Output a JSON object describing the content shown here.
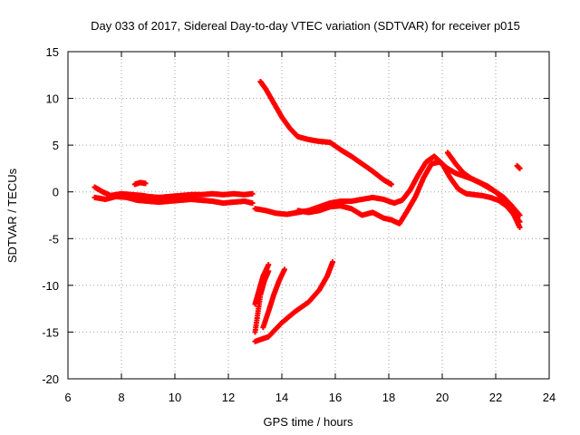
{
  "chart_data": {
    "type": "scatter",
    "title": "Day 033 of 2017, Sidereal Day-to-day VTEC variation (SDTVAR) for receiver p015",
    "xlabel": "GPS time / hours",
    "ylabel": "SDTVAR / TECUs",
    "xlim": [
      6,
      24
    ],
    "ylim": [
      -20,
      15
    ],
    "xticks": [
      6,
      8,
      10,
      12,
      14,
      16,
      18,
      20,
      22,
      24
    ],
    "yticks": [
      -20,
      -15,
      -10,
      -5,
      0,
      5,
      10,
      15
    ],
    "grid": true,
    "marker_color": "#ff0000",
    "series": [
      {
        "name": "segment-1",
        "x": [
          7.0,
          7.3,
          7.6,
          8.0,
          8.4,
          8.8,
          9.0,
          9.4,
          9.8,
          10.2,
          10.6,
          11.0,
          11.4,
          11.8,
          12.2,
          12.6,
          12.9
        ],
        "y": [
          0.5,
          0.0,
          -0.4,
          -0.2,
          -0.3,
          -0.4,
          -0.5,
          -0.6,
          -0.5,
          -0.4,
          -0.3,
          -0.3,
          -0.2,
          -0.3,
          -0.2,
          -0.3,
          -0.2
        ]
      },
      {
        "name": "segment-2",
        "x": [
          7.0,
          7.4,
          7.8,
          8.2,
          8.6,
          9.0,
          9.4,
          9.8,
          10.2,
          10.6,
          11.0,
          11.4,
          11.8,
          12.2,
          12.6,
          12.9
        ],
        "y": [
          -0.6,
          -0.8,
          -0.5,
          -0.6,
          -0.9,
          -1.0,
          -1.1,
          -1.0,
          -0.9,
          -0.8,
          -0.9,
          -1.0,
          -1.2,
          -1.1,
          -1.0,
          -1.2
        ]
      },
      {
        "name": "segment-3",
        "x": [
          8.5,
          8.7,
          8.9
        ],
        "y": [
          0.8,
          1.0,
          0.9
        ]
      },
      {
        "name": "segment-4",
        "x": [
          13.0,
          13.4,
          13.8,
          14.2,
          14.6,
          15.0,
          15.4,
          15.8,
          16.2,
          16.6,
          17.0,
          17.4,
          17.8,
          18.2,
          18.5,
          18.8,
          19.1,
          19.4,
          19.7,
          20.0,
          20.3,
          20.6,
          20.9,
          21.2,
          21.5,
          21.8,
          22.1,
          22.4,
          22.7,
          22.9
        ],
        "y": [
          -1.8,
          -2.0,
          -2.3,
          -2.4,
          -2.2,
          -2.0,
          -1.6,
          -1.2,
          -1.0,
          -1.0,
          -0.8,
          -0.6,
          -0.8,
          -1.2,
          -0.9,
          0.2,
          1.8,
          3.2,
          3.8,
          3.0,
          1.5,
          0.3,
          -0.2,
          -0.3,
          -0.4,
          -0.6,
          -0.9,
          -1.5,
          -2.5,
          -3.2
        ]
      },
      {
        "name": "segment-5",
        "x": [
          14.6,
          15.0,
          15.4,
          15.8,
          16.2,
          16.6,
          17.0,
          17.4,
          17.8,
          18.1,
          18.4,
          18.7,
          19.0,
          19.3,
          19.6,
          19.9,
          20.2,
          20.5,
          20.8,
          21.1,
          21.4,
          21.7,
          22.0,
          22.3,
          22.6,
          22.9
        ],
        "y": [
          -2.0,
          -2.2,
          -2.0,
          -1.6,
          -1.5,
          -1.8,
          -2.5,
          -2.2,
          -2.8,
          -3.0,
          -3.4,
          -2.0,
          -0.5,
          1.5,
          3.0,
          3.2,
          2.5,
          2.0,
          1.7,
          1.4,
          1.0,
          0.6,
          0.0,
          -0.8,
          -2.0,
          -3.8
        ]
      },
      {
        "name": "segment-6",
        "x": [
          13.2,
          13.4,
          13.7,
          14.0,
          14.3,
          14.6,
          15.0,
          15.4,
          15.8,
          16.2,
          16.6,
          17.0,
          17.4,
          17.8,
          18.1
        ],
        "y": [
          11.8,
          11.0,
          9.5,
          8.0,
          6.8,
          5.9,
          5.6,
          5.4,
          5.3,
          4.5,
          3.8,
          3.0,
          2.2,
          1.3,
          0.8
        ]
      },
      {
        "name": "segment-7",
        "x": [
          20.2,
          20.5,
          20.8,
          21.1,
          21.4,
          21.7,
          22.0,
          22.3,
          22.6,
          22.9
        ],
        "y": [
          4.2,
          3.0,
          2.0,
          1.4,
          1.0,
          0.5,
          0.0,
          -0.6,
          -1.5,
          -2.5
        ]
      },
      {
        "name": "segment-8",
        "x": [
          22.8,
          22.9
        ],
        "y": [
          2.8,
          2.5
        ]
      },
      {
        "name": "segment-9",
        "x": [
          13.0,
          13.1,
          13.2,
          13.35,
          13.5
        ],
        "y": [
          -15.0,
          -13.0,
          -11.0,
          -9.5,
          -8.5
        ]
      },
      {
        "name": "segment-10",
        "x": [
          13.0,
          13.15,
          13.3,
          13.5
        ],
        "y": [
          -12.0,
          -10.5,
          -9.0,
          -7.8
        ]
      },
      {
        "name": "segment-11",
        "x": [
          13.3,
          13.5,
          13.7,
          13.9,
          14.1
        ],
        "y": [
          -14.5,
          -12.8,
          -11.0,
          -9.5,
          -8.3
        ]
      },
      {
        "name": "segment-12",
        "x": [
          13.0,
          13.5,
          14.0,
          14.5,
          15.0,
          15.4,
          15.7,
          15.9
        ],
        "y": [
          -16.0,
          -15.5,
          -14.0,
          -12.8,
          -11.8,
          -10.5,
          -9.0,
          -7.5
        ]
      }
    ]
  }
}
